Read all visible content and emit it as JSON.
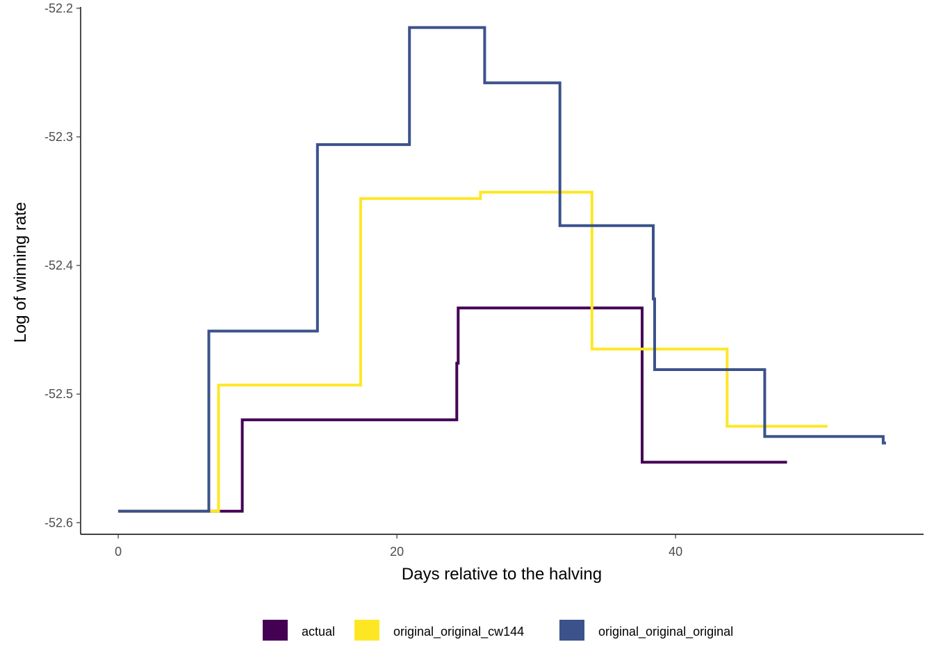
{
  "chart_data": {
    "type": "line",
    "step": true,
    "xlabel": "Days relative to the halving",
    "ylabel": "Log of winning rate",
    "xlim": [
      -2.7,
      57.8
    ],
    "ylim": [
      -52.609,
      -52.199
    ],
    "x_ticks": [
      0,
      20,
      40
    ],
    "x_tick_labels": [
      "0",
      "20",
      "40"
    ],
    "y_ticks": [
      -52.6,
      -52.5,
      -52.4,
      -52.3,
      -52.2
    ],
    "y_tick_labels": [
      "-52.6",
      "-52.5",
      "-52.4",
      "-52.3",
      "-52.2"
    ],
    "grid": false,
    "legend_position": "bottom",
    "series": [
      {
        "name": "actual",
        "color": "#440154",
        "points": [
          [
            0,
            -52.591
          ],
          [
            8.9,
            -52.591
          ],
          [
            8.9,
            -52.52
          ],
          [
            24.3,
            -52.52
          ],
          [
            24.3,
            -52.476
          ],
          [
            24.4,
            -52.476
          ],
          [
            24.4,
            -52.433
          ],
          [
            37.6,
            -52.433
          ],
          [
            37.6,
            -52.553
          ],
          [
            48.0,
            -52.553
          ]
        ]
      },
      {
        "name": "original_original_cw144",
        "color": "#FDE725",
        "points": [
          [
            0,
            -52.591
          ],
          [
            7.2,
            -52.591
          ],
          [
            7.2,
            -52.493
          ],
          [
            17.4,
            -52.493
          ],
          [
            17.4,
            -52.348
          ],
          [
            26.0,
            -52.348
          ],
          [
            26.0,
            -52.343
          ],
          [
            34.0,
            -52.343
          ],
          [
            34.0,
            -52.465
          ],
          [
            43.7,
            -52.465
          ],
          [
            43.7,
            -52.525
          ],
          [
            50.9,
            -52.525
          ]
        ]
      },
      {
        "name": "original_original_original",
        "color": "#3B528B",
        "points": [
          [
            0,
            -52.591
          ],
          [
            6.5,
            -52.591
          ],
          [
            6.5,
            -52.451
          ],
          [
            14.3,
            -52.451
          ],
          [
            14.3,
            -52.306
          ],
          [
            20.9,
            -52.306
          ],
          [
            20.9,
            -52.215
          ],
          [
            26.3,
            -52.215
          ],
          [
            26.3,
            -52.258
          ],
          [
            31.7,
            -52.258
          ],
          [
            31.7,
            -52.369
          ],
          [
            38.4,
            -52.369
          ],
          [
            38.4,
            -52.426
          ],
          [
            38.5,
            -52.426
          ],
          [
            38.5,
            -52.481
          ],
          [
            46.4,
            -52.481
          ],
          [
            46.4,
            -52.533
          ],
          [
            54.9,
            -52.533
          ],
          [
            54.9,
            -52.538
          ],
          [
            55.1,
            -52.538
          ]
        ]
      }
    ]
  }
}
